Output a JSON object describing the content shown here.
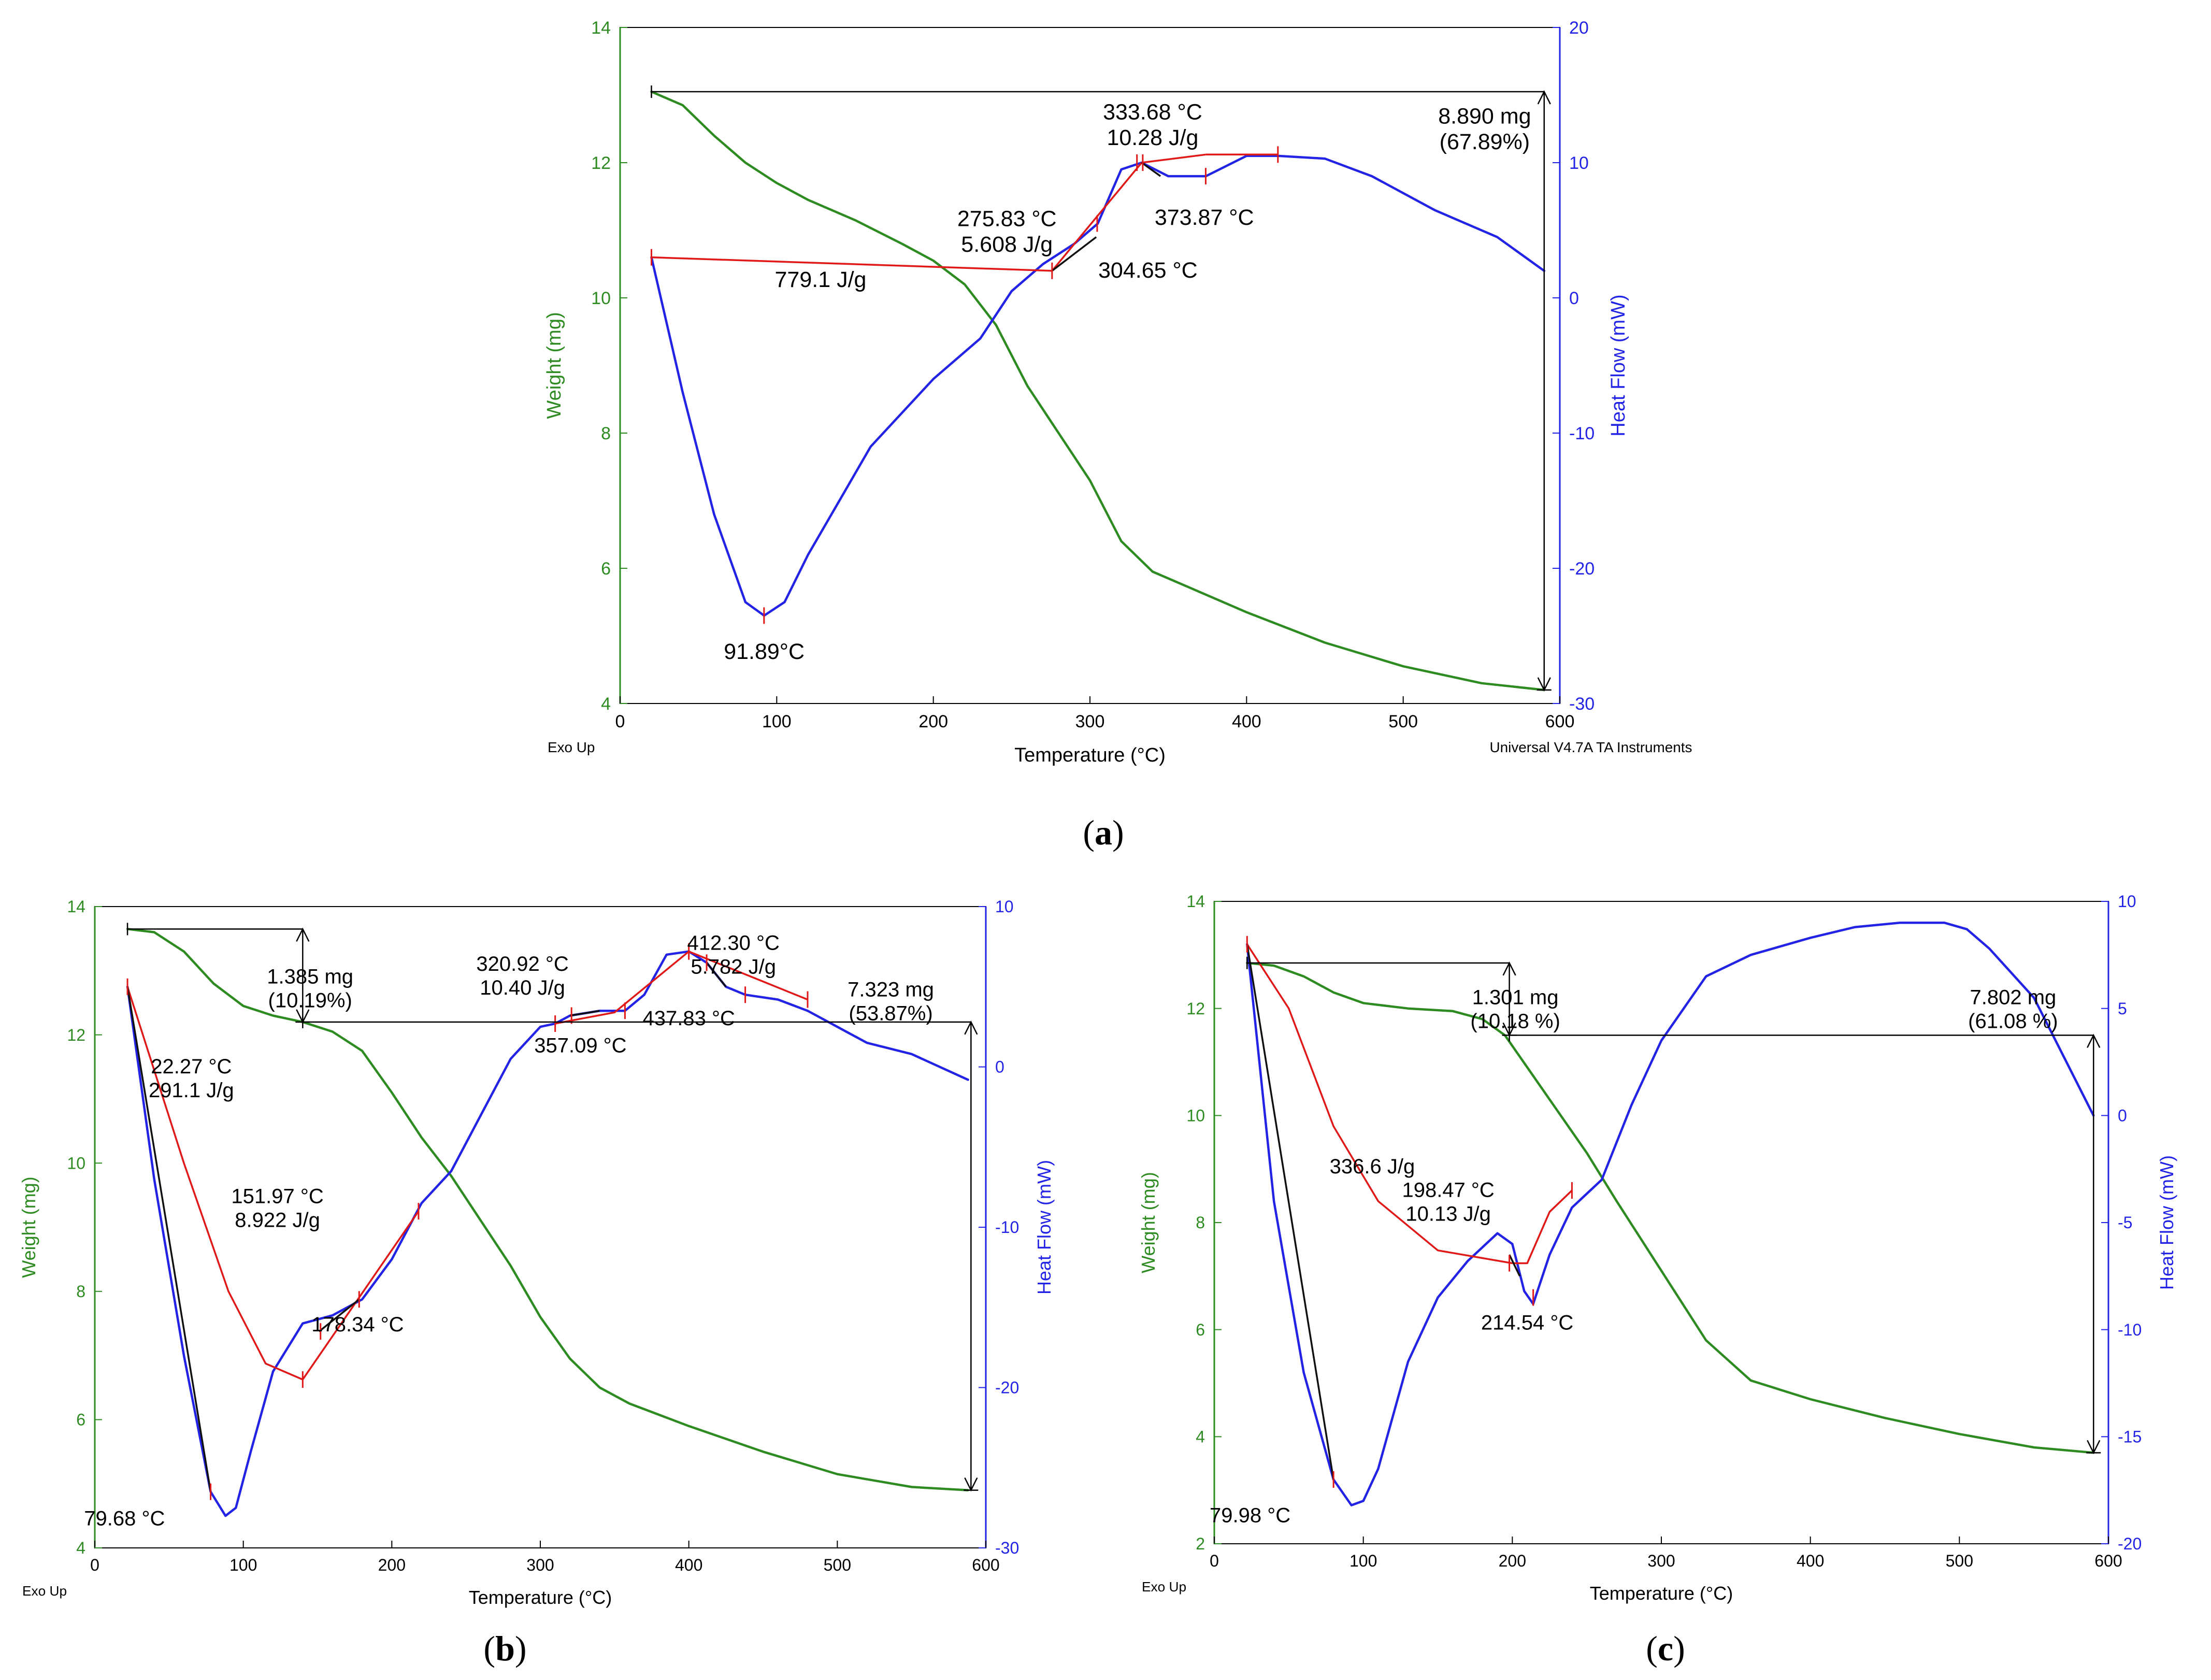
{
  "colors": {
    "weight": "#2e8b22",
    "heat": "#2323e6",
    "red": "#e01818",
    "black": "#111111",
    "axis_left": "#2e8b22",
    "axis_right": "#2323e6"
  },
  "chart_data": [
    {
      "id": "a",
      "type": "line",
      "caption_open": "(",
      "caption_letter": "a",
      "caption_close": ")",
      "xlabel": "Temperature (°C)",
      "ylabel_left": "Weight (mg)",
      "ylabel_right": "Heat Flow (mW)",
      "corner_left": "Exo Up",
      "corner_right": "Universal V4.7A TA Instruments",
      "xlim": [
        0,
        600
      ],
      "ylim_left": [
        4,
        14
      ],
      "ylim_right": [
        -30,
        20
      ],
      "xticks": [
        0,
        100,
        200,
        300,
        400,
        500,
        600
      ],
      "yticks_left": [
        4,
        6,
        8,
        10,
        12,
        14
      ],
      "yticks_right": [
        -30,
        -20,
        -10,
        0,
        10,
        20
      ],
      "series": [
        {
          "name": "Weight",
          "axis": "left",
          "color": "#2e8b22",
          "x": [
            20,
            40,
            60,
            80,
            100,
            120,
            150,
            180,
            200,
            220,
            240,
            260,
            280,
            300,
            320,
            340,
            360,
            400,
            450,
            500,
            550,
            590
          ],
          "y": [
            13.05,
            12.85,
            12.4,
            12.0,
            11.7,
            11.45,
            11.15,
            10.8,
            10.55,
            10.2,
            9.6,
            8.7,
            8.0,
            7.3,
            6.4,
            5.95,
            5.75,
            5.35,
            4.9,
            4.55,
            4.3,
            4.2
          ]
        },
        {
          "name": "Heat Flow",
          "axis": "right",
          "color": "#2323e6",
          "x": [
            20,
            40,
            60,
            80,
            92,
            105,
            120,
            140,
            160,
            180,
            200,
            230,
            250,
            270,
            290,
            305,
            320,
            333,
            350,
            374,
            400,
            420,
            450,
            480,
            520,
            560,
            590
          ],
          "y": [
            3,
            -7,
            -16,
            -22.5,
            -23.5,
            -22.5,
            -19,
            -15,
            -11,
            -8.5,
            -6,
            -3,
            0.5,
            2.5,
            4,
            5.5,
            9.5,
            10,
            9,
            9,
            10.5,
            10.5,
            10.3,
            9,
            6.5,
            4.5,
            2
          ]
        }
      ],
      "annotations": [
        {
          "kind": "text",
          "lines": [
            "333.68 °C",
            "10.28 J/g"
          ],
          "x": 340,
          "y_right": 13.2
        },
        {
          "kind": "text",
          "lines": [
            "275.83 °C",
            "5.608 J/g"
          ],
          "x": 247,
          "y_right": 5.3
        },
        {
          "kind": "text",
          "lines": [
            "373.87 °C"
          ],
          "x": 373,
          "y_right": 5.4
        },
        {
          "kind": "text",
          "lines": [
            "304.65 °C"
          ],
          "x": 337,
          "y_right": 1.5
        },
        {
          "kind": "text",
          "lines": [
            "779.1 J/g"
          ],
          "x": 128,
          "y_right": 0.8
        },
        {
          "kind": "text",
          "lines": [
            "91.89°C"
          ],
          "x": 92,
          "y_right": -26.7
        },
        {
          "kind": "text",
          "lines": [
            "8.890 mg",
            "(67.89%)"
          ],
          "x": 552,
          "y_right": 12.9
        }
      ]
    },
    {
      "id": "b",
      "type": "line",
      "caption_open": "(",
      "caption_letter": "b",
      "caption_close": ")",
      "xlabel": "Temperature (°C)",
      "ylabel_left": "Weight (mg)",
      "ylabel_right": "Heat Flow (mW)",
      "corner_left": "Exo Up",
      "corner_right": "",
      "xlim": [
        0,
        600
      ],
      "ylim_left": [
        4,
        14
      ],
      "ylim_right": [
        -30,
        10
      ],
      "xticks": [
        0,
        100,
        200,
        300,
        400,
        500,
        600
      ],
      "yticks_left": [
        4,
        6,
        8,
        10,
        12,
        14
      ],
      "yticks_right": [
        -30,
        -20,
        -10,
        0,
        10
      ],
      "series": [
        {
          "name": "Weight",
          "axis": "left",
          "color": "#2e8b22",
          "x": [
            22,
            40,
            60,
            80,
            100,
            120,
            140,
            160,
            180,
            200,
            220,
            240,
            260,
            280,
            300,
            320,
            340,
            360,
            400,
            450,
            500,
            550,
            588
          ],
          "y": [
            13.65,
            13.6,
            13.3,
            12.8,
            12.45,
            12.3,
            12.2,
            12.05,
            11.75,
            11.1,
            10.4,
            9.8,
            9.1,
            8.4,
            7.6,
            6.95,
            6.5,
            6.25,
            5.9,
            5.5,
            5.15,
            4.95,
            4.9
          ]
        },
        {
          "name": "Heat Flow",
          "axis": "right",
          "color": "#2323e6",
          "x": [
            22,
            40,
            60,
            78,
            88,
            95,
            105,
            120,
            140,
            160,
            180,
            200,
            220,
            240,
            260,
            280,
            300,
            310,
            320,
            340,
            357,
            370,
            385,
            400,
            412,
            425,
            438,
            460,
            480,
            500,
            520,
            550,
            588
          ],
          "y": [
            5,
            -7,
            -18,
            -26.5,
            -28,
            -27.5,
            -24,
            -19,
            -16,
            -15.5,
            -14.5,
            -12,
            -8.5,
            -6.5,
            -3,
            0.5,
            2.5,
            2.7,
            3.2,
            3.5,
            3.5,
            4.5,
            7,
            7.2,
            6.5,
            5,
            4.5,
            4.2,
            3.5,
            2.5,
            1.5,
            0.8,
            -0.8
          ]
        }
      ],
      "annotations": [
        {
          "kind": "text",
          "lines": [
            "1.385 mg",
            "(10.19%)"
          ],
          "x": 145,
          "y_right": 5.2
        },
        {
          "kind": "text",
          "lines": [
            "320.92 °C",
            "10.40 J/g"
          ],
          "x": 288,
          "y_right": 6.0
        },
        {
          "kind": "text",
          "lines": [
            "412.30 °C",
            "5.782 J/g"
          ],
          "x": 430,
          "y_right": 7.3
        },
        {
          "kind": "text",
          "lines": [
            "7.323 mg",
            "(53.87%)"
          ],
          "x": 536,
          "y_right": 4.4
        },
        {
          "kind": "text",
          "lines": [
            "437.83 °C"
          ],
          "x": 400,
          "y_right": 2.6
        },
        {
          "kind": "text",
          "lines": [
            "357.09 °C"
          ],
          "x": 327,
          "y_right": 0.9
        },
        {
          "kind": "text",
          "lines": [
            "22.27 °C",
            "291.1 J/g"
          ],
          "x": 65,
          "y_right": -0.4
        },
        {
          "kind": "text",
          "lines": [
            "151.97 °C",
            "8.922 J/g"
          ],
          "x": 123,
          "y_right": -8.5
        },
        {
          "kind": "text",
          "lines": [
            "178.34 °C"
          ],
          "x": 177,
          "y_right": -16.5
        },
        {
          "kind": "text",
          "lines": [
            "79.68 °C"
          ],
          "x": 20,
          "y_right": -28.6
        }
      ]
    },
    {
      "id": "c",
      "type": "line",
      "caption_open": "(",
      "caption_letter": "c",
      "caption_close": ")",
      "xlabel": "Temperature (°C)",
      "ylabel_left": "Weight (mg)",
      "ylabel_right": "Heat Flow (mW)",
      "corner_left": "Exo Up",
      "corner_right": "",
      "xlim": [
        0,
        600
      ],
      "ylim_left": [
        2,
        14
      ],
      "ylim_right": [
        -20,
        10
      ],
      "xticks": [
        0,
        100,
        200,
        300,
        400,
        500,
        600
      ],
      "yticks_left": [
        2,
        4,
        6,
        8,
        10,
        12,
        14
      ],
      "yticks_right": [
        -20,
        -15,
        -10,
        -5,
        0,
        5,
        10
      ],
      "series": [
        {
          "name": "Weight",
          "axis": "left",
          "color": "#2e8b22",
          "x": [
            22,
            40,
            60,
            80,
            100,
            130,
            160,
            180,
            195,
            210,
            230,
            250,
            270,
            300,
            330,
            360,
            400,
            450,
            500,
            550,
            590
          ],
          "y": [
            12.85,
            12.8,
            12.6,
            12.3,
            12.1,
            12.0,
            11.95,
            11.8,
            11.5,
            10.9,
            10.1,
            9.3,
            8.4,
            7.1,
            5.8,
            5.05,
            4.7,
            4.35,
            4.05,
            3.8,
            3.7
          ]
        },
        {
          "name": "Heat Flow",
          "axis": "right",
          "color": "#2323e6",
          "x": [
            22,
            40,
            60,
            80,
            92,
            100,
            110,
            130,
            150,
            170,
            190,
            200,
            208,
            214,
            225,
            240,
            260,
            280,
            300,
            330,
            360,
            400,
            430,
            460,
            490,
            505,
            520,
            550,
            590
          ],
          "y": [
            8,
            -4,
            -12,
            -17,
            -18.2,
            -18,
            -16.5,
            -11.5,
            -8.5,
            -6.8,
            -5.5,
            -6.0,
            -8.2,
            -8.8,
            -6.5,
            -4.3,
            -3.0,
            0.5,
            3.5,
            6.5,
            7.5,
            8.3,
            8.8,
            9.0,
            9.0,
            8.7,
            7.8,
            5.5,
            0
          ]
        }
      ],
      "annotations": [
        {
          "kind": "text",
          "lines": [
            "1.301 mg",
            "(10.18 %)"
          ],
          "x": 202,
          "y_right": 5.2
        },
        {
          "kind": "text",
          "lines": [
            "7.802 mg",
            "(61.08 %)"
          ],
          "x": 536,
          "y_right": 5.2
        },
        {
          "kind": "text",
          "lines": [
            "336.6 J/g"
          ],
          "x": 106,
          "y_right": -2.7
        },
        {
          "kind": "text",
          "lines": [
            "198.47 °C",
            "10.13 J/g"
          ],
          "x": 157,
          "y_right": -3.8
        },
        {
          "kind": "text",
          "lines": [
            "214.54 °C"
          ],
          "x": 210,
          "y_right": -10.0
        },
        {
          "kind": "text",
          "lines": [
            "79.98 °C"
          ],
          "x": 24,
          "y_right": -19.0
        }
      ]
    }
  ]
}
